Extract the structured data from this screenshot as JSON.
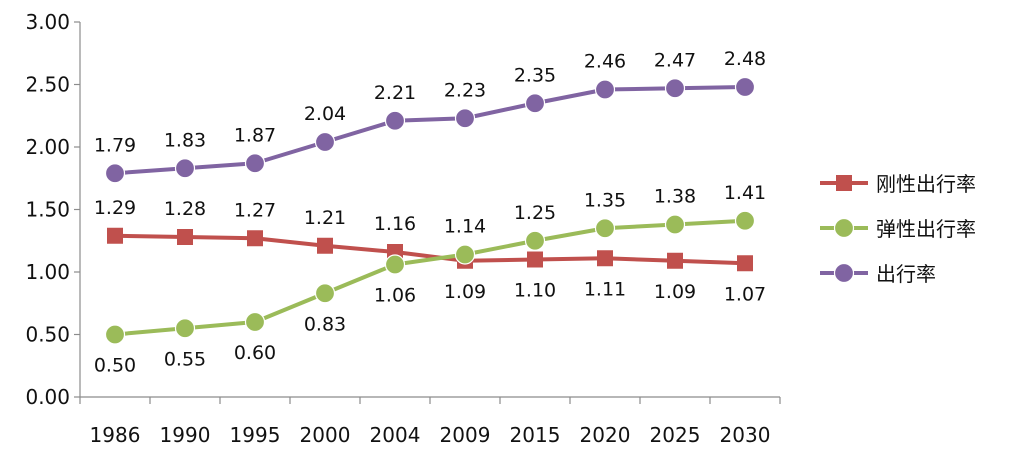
{
  "chart_data": {
    "type": "line",
    "categories": [
      "1986",
      "1990",
      "1995",
      "2000",
      "2004",
      "2009",
      "2015",
      "2020",
      "2025",
      "2030"
    ],
    "ylim": [
      0,
      3
    ],
    "yticks": [
      "0.00",
      "0.50",
      "1.00",
      "1.50",
      "2.00",
      "2.50",
      "3.00"
    ],
    "grid": false,
    "legend_position": "right",
    "series": [
      {
        "name": "刚性出行率",
        "color": "#c0504d",
        "marker": "square",
        "values": [
          1.29,
          1.28,
          1.27,
          1.21,
          1.16,
          1.09,
          1.1,
          1.11,
          1.09,
          1.07
        ],
        "labels": [
          "1.29",
          "1.28",
          "1.27",
          "1.21",
          "1.16",
          "1.09",
          "1.10",
          "1.11",
          "1.09",
          "1.07"
        ],
        "label_positions": [
          "above",
          "above",
          "above",
          "above",
          "above",
          "below",
          "below",
          "below",
          "below",
          "below"
        ]
      },
      {
        "name": "弹性出行率",
        "color": "#9bbb59",
        "marker": "circle",
        "values": [
          0.5,
          0.55,
          0.6,
          0.83,
          1.06,
          1.14,
          1.25,
          1.35,
          1.38,
          1.41
        ],
        "labels": [
          "0.50",
          "0.55",
          "0.60",
          "0.83",
          "1.06",
          "1.14",
          "1.25",
          "1.35",
          "1.38",
          "1.41"
        ],
        "label_positions": [
          "below",
          "below",
          "below",
          "below",
          "below",
          "above",
          "above",
          "above",
          "above",
          "above"
        ]
      },
      {
        "name": "出行率",
        "color": "#8064a2",
        "marker": "circle",
        "values": [
          1.79,
          1.83,
          1.87,
          2.04,
          2.21,
          2.23,
          2.35,
          2.46,
          2.47,
          2.48
        ],
        "labels": [
          "1.79",
          "1.83",
          "1.87",
          "2.04",
          "2.21",
          "2.23",
          "2.35",
          "2.46",
          "2.47",
          "2.48"
        ],
        "label_positions": [
          "above",
          "above",
          "above",
          "above",
          "above",
          "above",
          "above",
          "above",
          "above",
          "above"
        ]
      }
    ]
  }
}
